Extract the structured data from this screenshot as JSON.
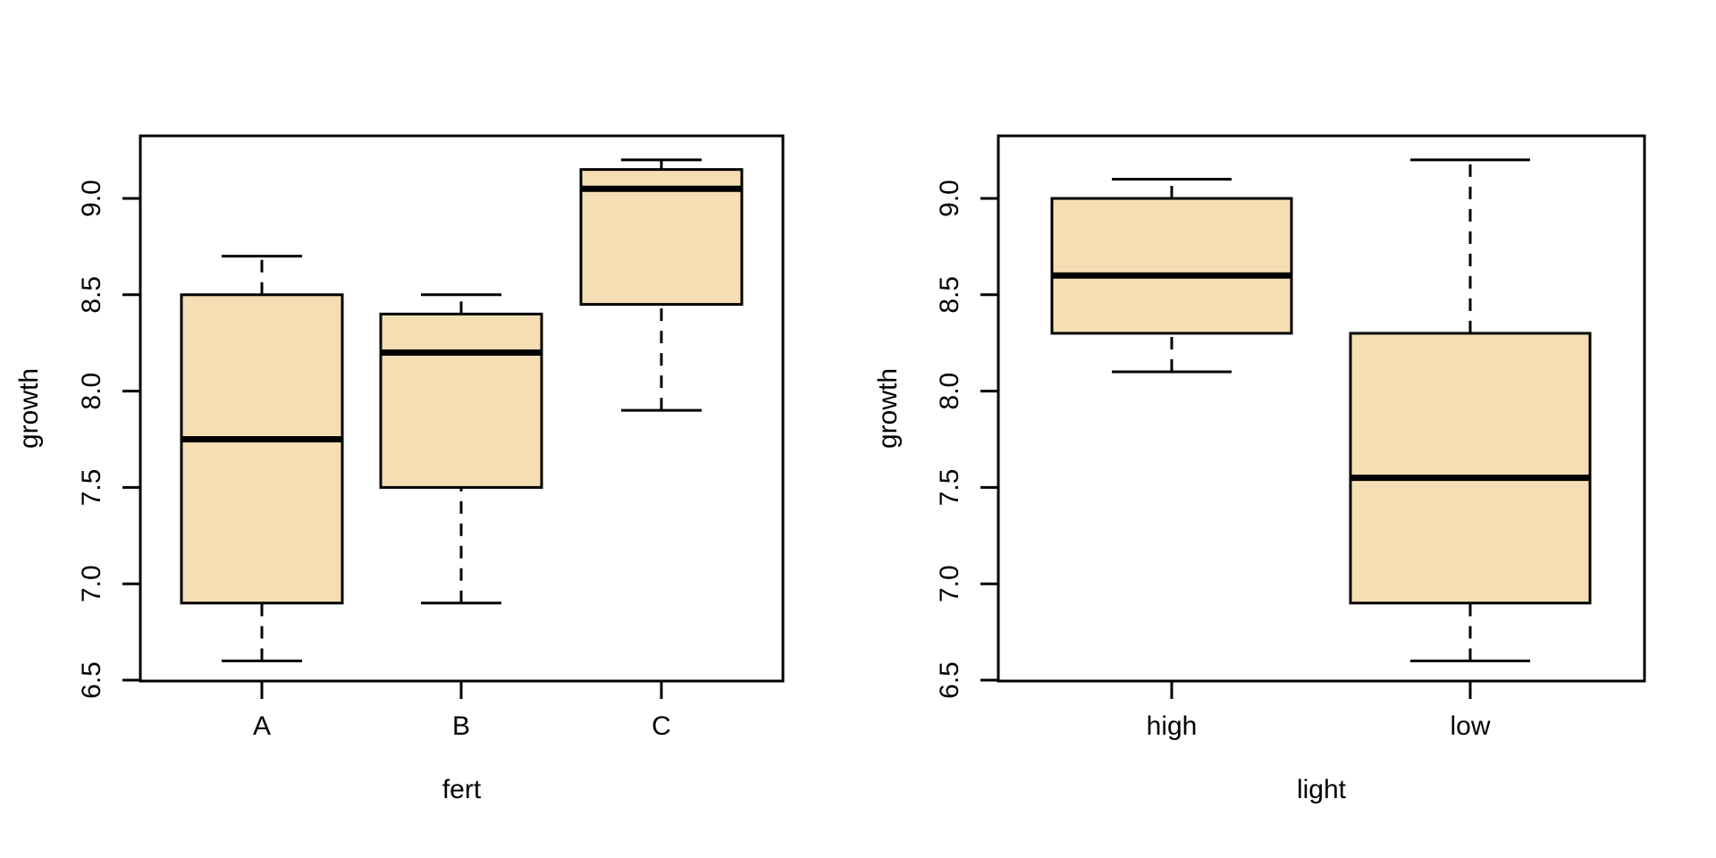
{
  "figure": {
    "background_color": "#ffffff",
    "box_fill_color": "#f5deb3",
    "line_color": "#000000",
    "y_axis_title": "growth"
  },
  "chart_data": [
    {
      "type": "boxplot",
      "title": "",
      "xlabel": "fert",
      "ylabel": "growth",
      "categories": [
        "A",
        "B",
        "C"
      ],
      "ylim": [
        6.5,
        9.3
      ],
      "yticks": [
        6.5,
        7.0,
        7.5,
        8.0,
        8.5,
        9.0
      ],
      "ytick_labels": [
        "6.5",
        "7.0",
        "7.5",
        "8.0",
        "8.5",
        "9.0"
      ],
      "grid": false,
      "legend": "none",
      "series": [
        {
          "name": "A",
          "min": 6.6,
          "q1": 6.9,
          "median": 7.75,
          "q3": 8.5,
          "max": 8.7
        },
        {
          "name": "B",
          "min": 6.9,
          "q1": 7.5,
          "median": 8.2,
          "q3": 8.4,
          "max": 8.5
        },
        {
          "name": "C",
          "min": 7.9,
          "q1": 8.45,
          "median": 9.05,
          "q3": 9.15,
          "max": 9.2
        }
      ]
    },
    {
      "type": "boxplot",
      "title": "",
      "xlabel": "light",
      "ylabel": "growth",
      "categories": [
        "high",
        "low"
      ],
      "ylim": [
        6.5,
        9.3
      ],
      "yticks": [
        6.5,
        7.0,
        7.5,
        8.0,
        8.5,
        9.0
      ],
      "ytick_labels": [
        "6.5",
        "7.0",
        "7.5",
        "8.0",
        "8.5",
        "9.0"
      ],
      "grid": false,
      "legend": "none",
      "series": [
        {
          "name": "high",
          "min": 8.1,
          "q1": 8.3,
          "median": 8.6,
          "q3": 9.0,
          "max": 9.1
        },
        {
          "name": "low",
          "min": 6.6,
          "q1": 6.9,
          "median": 7.55,
          "q3": 8.3,
          "max": 9.2
        }
      ]
    }
  ]
}
